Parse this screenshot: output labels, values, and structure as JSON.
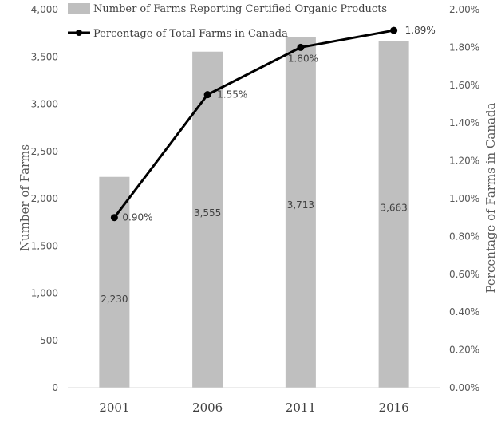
{
  "chart_data": {
    "type": "bar",
    "categories": [
      "2001",
      "2006",
      "2011",
      "2016"
    ],
    "series": [
      {
        "name": "Number of Farms Reporting Certified Organic Products",
        "type": "bar",
        "axis": "left",
        "values": [
          2230,
          3555,
          3713,
          3663
        ],
        "labels": [
          "2,230",
          "3,555",
          "3,713",
          "3,663"
        ],
        "color": "#bfbfbf"
      },
      {
        "name": "Percentage of Total Farms in Canada",
        "type": "line",
        "axis": "right",
        "values": [
          0.9,
          1.55,
          1.8,
          1.89
        ],
        "labels": [
          "0.90%",
          "1.55%",
          "1.80%",
          "1.89%"
        ],
        "color": "#000000"
      }
    ],
    "y_left": {
      "label": "Number of Farms",
      "range": [
        0,
        4000
      ],
      "ticks": [
        "0",
        "500",
        "1,000",
        "1,500",
        "2,000",
        "2,500",
        "3,000",
        "3,500",
        "4,000"
      ]
    },
    "y_right": {
      "label": "Percentage of Farms in Canada",
      "range": [
        0,
        2.0
      ],
      "ticks": [
        "0.00%",
        "0.20%",
        "0.40%",
        "0.60%",
        "0.80%",
        "1.00%",
        "1.20%",
        "1.40%",
        "1.60%",
        "1.80%",
        "2.00%"
      ]
    },
    "grid": false,
    "legend_position": "top"
  }
}
